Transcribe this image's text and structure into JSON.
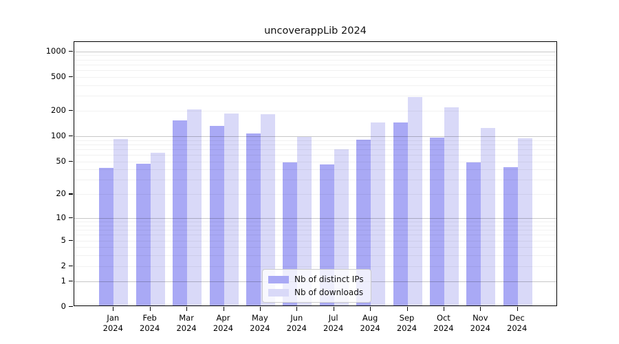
{
  "chart_data": {
    "type": "bar",
    "title": "uncoverappLib 2024",
    "categories": [
      "Jan",
      "Feb",
      "Mar",
      "Apr",
      "May",
      "Jun",
      "Jul",
      "Aug",
      "Sep",
      "Oct",
      "Nov",
      "Dec"
    ],
    "category_year": "2024",
    "series": [
      {
        "name": "Nb of distinct IPs",
        "color": "#a9a9f5",
        "values": [
          40,
          45,
          148,
          128,
          104,
          47,
          44,
          87,
          139,
          92,
          47,
          41
        ]
      },
      {
        "name": "Nb of downloads",
        "color": "#d9d9f8",
        "values": [
          90,
          61,
          200,
          178,
          177,
          95,
          67,
          140,
          280,
          210,
          121,
          91
        ]
      }
    ],
    "yscale": "log1p",
    "yticks": [
      0,
      1,
      2,
      5,
      10,
      20,
      50,
      100,
      200,
      500,
      1000
    ],
    "ylim": [
      0,
      1290
    ],
    "grid": "horizontal",
    "legend_position": "lower center"
  }
}
